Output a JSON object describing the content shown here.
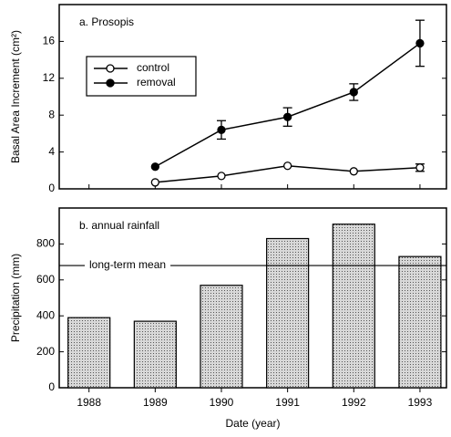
{
  "chart_data": [
    {
      "type": "line",
      "title": "a. Prosopis",
      "ylabel": "Basal Area Increment (cm²)",
      "x": [
        1989,
        1990,
        1991,
        1992,
        1993
      ],
      "xlim": [
        1987.55,
        1993.4
      ],
      "xticks": [
        1988,
        1989,
        1990,
        1991,
        1992,
        1993
      ],
      "ylim": [
        0,
        20
      ],
      "yticks": [
        0,
        4,
        8,
        12,
        16
      ],
      "legend": "upper left",
      "series": [
        {
          "name": "control",
          "color": "#000000",
          "marker": "open",
          "values": [
            0.7,
            1.4,
            2.5,
            1.9,
            2.3
          ],
          "errors": [
            null,
            null,
            null,
            null,
            0.4
          ]
        },
        {
          "name": "removal",
          "color": "#000000",
          "marker": "filled",
          "values": [
            2.4,
            6.4,
            7.8,
            10.5,
            15.8
          ],
          "errors": [
            null,
            1.0,
            1.0,
            0.9,
            2.5
          ]
        }
      ]
    },
    {
      "type": "bar",
      "title": "b. annual rainfall",
      "ylabel": "Precipitation (mm)",
      "xlabel": "Date (year)",
      "x": [
        1988,
        1989,
        1990,
        1991,
        1992,
        1993
      ],
      "xlim": [
        1987.55,
        1993.4
      ],
      "values": [
        390,
        370,
        570,
        830,
        910,
        730
      ],
      "color": "#b8b8b8",
      "ylim": [
        0,
        1000
      ],
      "yticks": [
        0,
        200,
        400,
        600,
        800
      ],
      "annotation": {
        "text": "long-term mean",
        "value": 680
      }
    }
  ]
}
